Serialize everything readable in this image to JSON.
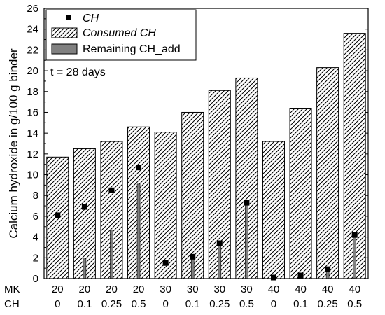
{
  "chart_data": {
    "type": "bar",
    "title": "",
    "ylabel": "Calcium hydroxide in g/100 g binder",
    "ylim": [
      0,
      26
    ],
    "ytick_step": 2,
    "row_labels": [
      "MK",
      "CH"
    ],
    "categories": [
      {
        "mk": "20",
        "ch": "0"
      },
      {
        "mk": "20",
        "ch": "0.1"
      },
      {
        "mk": "20",
        "ch": "0.25"
      },
      {
        "mk": "20",
        "ch": "0.5"
      },
      {
        "mk": "30",
        "ch": "0"
      },
      {
        "mk": "30",
        "ch": "0.1"
      },
      {
        "mk": "30",
        "ch": "0.25"
      },
      {
        "mk": "30",
        "ch": "0.5"
      },
      {
        "mk": "40",
        "ch": "0"
      },
      {
        "mk": "40",
        "ch": "0.1"
      },
      {
        "mk": "40",
        "ch": "0.25"
      },
      {
        "mk": "40",
        "ch": "0.5"
      }
    ],
    "series": [
      {
        "name": "CH",
        "style": "scatter",
        "values": [
          6.1,
          6.9,
          8.5,
          10.7,
          1.5,
          2.1,
          3.4,
          7.3,
          0.1,
          0.3,
          0.9,
          4.2
        ]
      },
      {
        "name": "Consumed CH",
        "style": "hatched-bar",
        "values": [
          11.7,
          12.5,
          13.2,
          14.6,
          14.1,
          16.0,
          18.1,
          19.3,
          13.2,
          16.4,
          20.3,
          23.6
        ]
      },
      {
        "name": "Remaining CH_add",
        "style": "thin-gray-bar",
        "values": [
          0,
          1.9,
          4.7,
          9.1,
          0,
          1.9,
          3.5,
          7.4,
          0,
          0.2,
          0.7,
          4.2
        ]
      }
    ],
    "annotation": "t = 28 days",
    "legend_position": "top-left",
    "colors": {
      "marker": "#000000",
      "remaining_fill": "#808080",
      "hatch": "#000000"
    }
  }
}
